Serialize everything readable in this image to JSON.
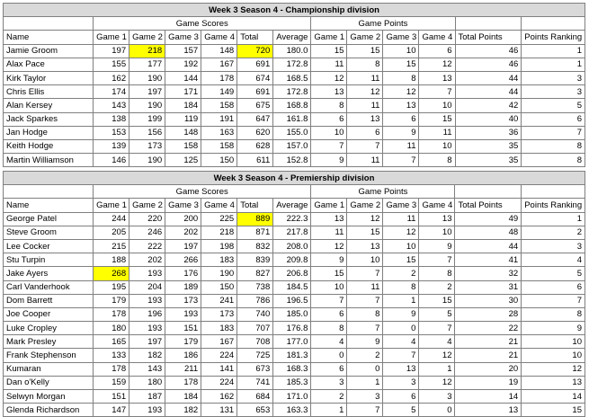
{
  "tables": [
    {
      "title": "Week 3 Season 4 - Championship division",
      "group_scores": "Game Scores",
      "group_points": "Game Points",
      "headers": [
        "Name",
        "Game 1",
        "Game 2",
        "Game 3",
        "Game 4",
        "Total",
        "Average",
        "Game 1",
        "Game 2",
        "Game 3",
        "Game 4",
        "Total Points",
        "Points Ranking"
      ],
      "rows": [
        [
          "Jamie Groom",
          "197",
          "218",
          "157",
          "148",
          "720",
          "180.0",
          "15",
          "15",
          "10",
          "6",
          "46",
          "1"
        ],
        [
          "Alax Pace",
          "155",
          "177",
          "192",
          "167",
          "691",
          "172.8",
          "11",
          "8",
          "15",
          "12",
          "46",
          "1"
        ],
        [
          "Kirk Taylor",
          "162",
          "190",
          "144",
          "178",
          "674",
          "168.5",
          "12",
          "11",
          "8",
          "13",
          "44",
          "3"
        ],
        [
          "Chris Ellis",
          "174",
          "197",
          "171",
          "149",
          "691",
          "172.8",
          "13",
          "12",
          "12",
          "7",
          "44",
          "3"
        ],
        [
          "Alan Kersey",
          "143",
          "190",
          "184",
          "158",
          "675",
          "168.8",
          "8",
          "11",
          "13",
          "10",
          "42",
          "5"
        ],
        [
          "Jack Sparkes",
          "138",
          "199",
          "119",
          "191",
          "647",
          "161.8",
          "6",
          "13",
          "6",
          "15",
          "40",
          "6"
        ],
        [
          "Jan Hodge",
          "153",
          "156",
          "148",
          "163",
          "620",
          "155.0",
          "10",
          "6",
          "9",
          "11",
          "36",
          "7"
        ],
        [
          "Keith Hodge",
          "139",
          "173",
          "158",
          "158",
          "628",
          "157.0",
          "7",
          "7",
          "11",
          "10",
          "35",
          "8"
        ],
        [
          "Martin Williamson",
          "146",
          "190",
          "125",
          "150",
          "611",
          "152.8",
          "9",
          "11",
          "7",
          "8",
          "35",
          "8"
        ]
      ],
      "highlight": [
        [
          0,
          2
        ],
        [
          0,
          5
        ]
      ]
    },
    {
      "title": "Week 3 Season 4 - Premiership division",
      "group_scores": "Game Scores",
      "group_points": "Game Points",
      "headers": [
        "Name",
        "Game 1",
        "Game 2",
        "Game 3",
        "Game 4",
        "Total",
        "Average",
        "Game 1",
        "Game 2",
        "Game 3",
        "Game 4",
        "Total Points",
        "Points Ranking"
      ],
      "rows": [
        [
          "George Patel",
          "244",
          "220",
          "200",
          "225",
          "889",
          "222.3",
          "13",
          "12",
          "11",
          "13",
          "49",
          "1"
        ],
        [
          "Steve Groom",
          "205",
          "246",
          "202",
          "218",
          "871",
          "217.8",
          "11",
          "15",
          "12",
          "10",
          "48",
          "2"
        ],
        [
          "Lee Cocker",
          "215",
          "222",
          "197",
          "198",
          "832",
          "208.0",
          "12",
          "13",
          "10",
          "9",
          "44",
          "3"
        ],
        [
          "Stu Turpin",
          "188",
          "202",
          "266",
          "183",
          "839",
          "209.8",
          "9",
          "10",
          "15",
          "7",
          "41",
          "4"
        ],
        [
          "Jake Ayers",
          "268",
          "193",
          "176",
          "190",
          "827",
          "206.8",
          "15",
          "7",
          "2",
          "8",
          "32",
          "5"
        ],
        [
          "Carl Vanderhook",
          "195",
          "204",
          "189",
          "150",
          "738",
          "184.5",
          "10",
          "11",
          "8",
          "2",
          "31",
          "6"
        ],
        [
          "Dom Barrett",
          "179",
          "193",
          "173",
          "241",
          "786",
          "196.5",
          "7",
          "7",
          "1",
          "15",
          "30",
          "7"
        ],
        [
          "Joe Cooper",
          "178",
          "196",
          "193",
          "173",
          "740",
          "185.0",
          "6",
          "8",
          "9",
          "5",
          "28",
          "8"
        ],
        [
          "Luke Cropley",
          "180",
          "193",
          "151",
          "183",
          "707",
          "176.8",
          "8",
          "7",
          "0",
          "7",
          "22",
          "9"
        ],
        [
          "Mark Presley",
          "165",
          "197",
          "179",
          "167",
          "708",
          "177.0",
          "4",
          "9",
          "4",
          "4",
          "21",
          "10"
        ],
        [
          "Frank Stephenson",
          "133",
          "182",
          "186",
          "224",
          "725",
          "181.3",
          "0",
          "2",
          "7",
          "12",
          "21",
          "10"
        ],
        [
          "Kumaran",
          "178",
          "143",
          "211",
          "141",
          "673",
          "168.3",
          "6",
          "0",
          "13",
          "1",
          "20",
          "12"
        ],
        [
          "Dan o'Kelly",
          "159",
          "180",
          "178",
          "224",
          "741",
          "185.3",
          "3",
          "1",
          "3",
          "12",
          "19",
          "13"
        ],
        [
          "Selwyn Morgan",
          "151",
          "187",
          "184",
          "162",
          "684",
          "171.0",
          "2",
          "3",
          "6",
          "3",
          "14",
          "14"
        ],
        [
          "Glenda Richardson",
          "147",
          "193",
          "182",
          "131",
          "653",
          "163.3",
          "1",
          "7",
          "5",
          "0",
          "13",
          "15"
        ]
      ],
      "highlight": [
        [
          0,
          5
        ],
        [
          4,
          1
        ]
      ]
    }
  ]
}
